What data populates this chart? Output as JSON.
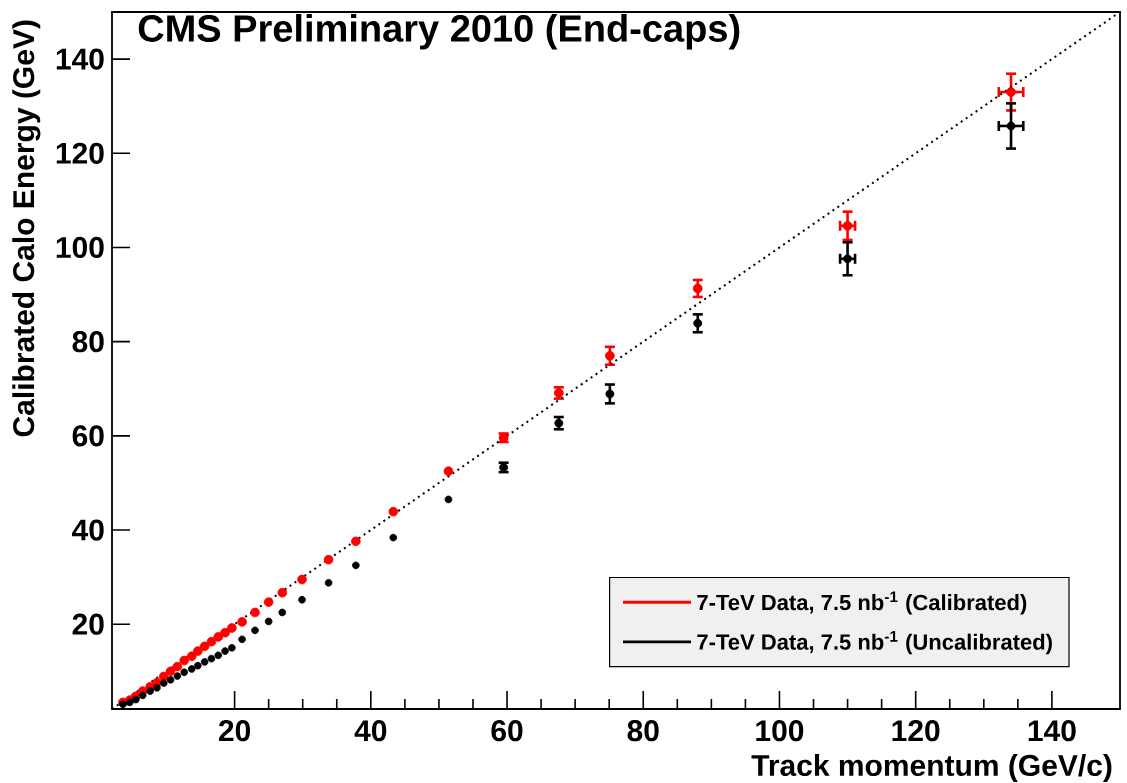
{
  "chart_data": {
    "type": "scatter",
    "title": "CMS Preliminary 2010 (End-caps)",
    "xlabel": "Track momentum (GeV/c)",
    "ylabel": "Calibrated Calo Energy (GeV)",
    "x": [
      3.6,
      4.6,
      5.5,
      6.5,
      7.6,
      8.6,
      9.6,
      10.6,
      11.6,
      12.6,
      13.7,
      14.6,
      15.6,
      16.6,
      17.6,
      18.6,
      19.6,
      21.1,
      23.0,
      25.0,
      27.0,
      29.9,
      33.8,
      37.8,
      43.3,
      51.4,
      59.5,
      67.6,
      75.1,
      88.0,
      110.0,
      134.0
    ],
    "series": [
      {
        "name": "7-TeV Data, 7.5 nb$^{-1}$ (Calibrated)",
        "color": "#ff0000",
        "marker": "circle",
        "values": [
          3.4,
          3.9,
          4.7,
          5.8,
          6.7,
          7.6,
          8.9,
          10.0,
          11.0,
          12.3,
          13.2,
          14.3,
          15.3,
          16.3,
          17.3,
          18.2,
          19.2,
          20.5,
          22.5,
          24.7,
          26.7,
          29.5,
          33.7,
          37.6,
          43.9,
          52.5,
          59.6,
          69.1,
          77.0,
          91.3,
          104.6,
          133.0
        ],
        "errors": [
          null,
          null,
          null,
          null,
          null,
          null,
          null,
          null,
          null,
          null,
          null,
          null,
          null,
          null,
          null,
          null,
          null,
          null,
          null,
          null,
          null,
          null,
          null,
          null,
          null,
          null,
          0.9,
          1.2,
          1.9,
          1.8,
          3.0,
          3.9
        ],
        "xerrors": [
          null,
          null,
          null,
          null,
          null,
          null,
          null,
          null,
          null,
          null,
          null,
          null,
          null,
          null,
          null,
          null,
          null,
          null,
          null,
          null,
          null,
          null,
          null,
          null,
          null,
          null,
          null,
          null,
          null,
          null,
          1.1,
          1.8
        ]
      },
      {
        "name": "7-TeV Data, 7.5 nb$^{-1}$ (Uncalibrated)",
        "color": "#000000",
        "marker": "circle",
        "values": [
          3.0,
          3.4,
          4.0,
          4.9,
          5.8,
          6.5,
          7.5,
          8.2,
          9.0,
          9.8,
          10.5,
          11.2,
          12.0,
          12.7,
          13.4,
          14.3,
          15.0,
          16.8,
          18.7,
          20.6,
          22.5,
          25.2,
          28.8,
          32.5,
          38.4,
          46.5,
          53.3,
          62.7,
          68.9,
          83.9,
          97.6,
          125.8
        ],
        "errors": [
          null,
          null,
          null,
          null,
          null,
          null,
          null,
          null,
          null,
          null,
          null,
          null,
          null,
          null,
          null,
          null,
          null,
          null,
          null,
          null,
          null,
          null,
          null,
          null,
          null,
          null,
          1.0,
          1.3,
          2.0,
          1.9,
          3.5,
          4.8
        ],
        "xerrors": [
          null,
          null,
          null,
          null,
          null,
          null,
          null,
          null,
          null,
          null,
          null,
          null,
          null,
          null,
          null,
          null,
          null,
          null,
          null,
          null,
          null,
          null,
          null,
          null,
          null,
          null,
          null,
          null,
          null,
          null,
          1.1,
          1.8
        ]
      },
      {
        "type": "line",
        "color": "#000000",
        "line_style": "dotted",
        "marker": "none",
        "x": [
          2,
          150
        ],
        "values": [
          2,
          150
        ]
      }
    ],
    "legend": "bottom right",
    "xlim": [
      2,
      150
    ],
    "ylim": [
      2,
      150
    ],
    "xticks": [
      20,
      40,
      60,
      80,
      100,
      120,
      140
    ],
    "yticks": [
      20,
      40,
      60,
      80,
      100,
      120,
      140
    ]
  }
}
